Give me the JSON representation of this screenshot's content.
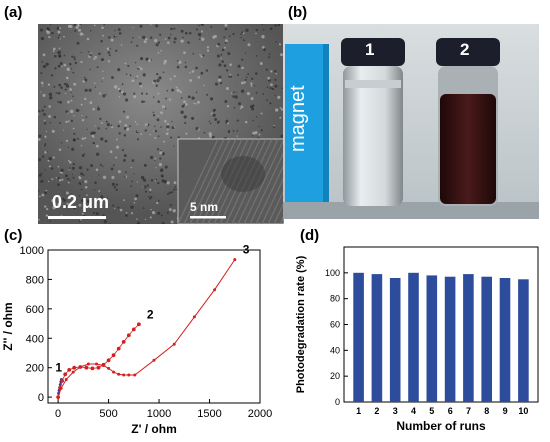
{
  "panels": {
    "a": {
      "letter": "(a)",
      "scale_bar": "0.2 μm",
      "inset_scale_bar": "5 nm"
    },
    "b": {
      "letter": "(b)",
      "magnet_text": "magnet",
      "vial_labels": [
        "1",
        "2"
      ]
    },
    "c": {
      "letter": "(c)"
    },
    "d": {
      "letter": "(d)"
    }
  },
  "colors": {
    "bar_fill": "#2e4c9c",
    "curve_red": "#d32020",
    "curve_blue": "#2a3fa8",
    "magnet_blue": "#1ea0e0",
    "vial2_liquid": "#3a1414"
  },
  "chart_data": [
    {
      "type": "line",
      "title": "",
      "xlabel": "Z' / ohm",
      "ylabel": "Z'' / ohm",
      "xlim": [
        -100,
        2000
      ],
      "ylim": [
        -40,
        1000
      ],
      "xticks": [
        0,
        500,
        1000,
        1500,
        2000
      ],
      "yticks": [
        0,
        200,
        400,
        600,
        800,
        1000
      ],
      "grid": false,
      "series": [
        {
          "label": "1",
          "x": [
            0,
            5,
            10,
            16,
            22,
            28,
            33
          ],
          "y": [
            0,
            25,
            45,
            65,
            85,
            105,
            120
          ]
        },
        {
          "label": "2",
          "x": [
            0,
            20,
            40,
            70,
            110,
            160,
            220,
            280,
            340,
            400,
            450,
            500,
            550,
            600,
            650,
            700,
            750,
            800
          ],
          "y": [
            0,
            60,
            110,
            155,
            185,
            200,
            205,
            200,
            195,
            200,
            220,
            250,
            285,
            330,
            375,
            420,
            460,
            495
          ]
        },
        {
          "label": "3",
          "x": [
            0,
            30,
            80,
            150,
            220,
            300,
            380,
            450,
            500,
            550,
            600,
            650,
            700,
            760,
            950,
            1150,
            1350,
            1550,
            1750
          ],
          "y": [
            0,
            60,
            120,
            170,
            205,
            225,
            225,
            215,
            195,
            170,
            155,
            150,
            150,
            150,
            250,
            360,
            545,
            730,
            935
          ]
        }
      ]
    },
    {
      "type": "bar",
      "title": "",
      "xlabel": "Number of runs",
      "ylabel": "Photodegradation rate (%)",
      "categories": [
        "1",
        "2",
        "3",
        "4",
        "5",
        "6",
        "7",
        "8",
        "9",
        "10"
      ],
      "values": [
        100,
        99,
        96,
        100,
        98,
        97,
        99,
        97,
        96,
        95
      ],
      "ylim": [
        0,
        120
      ],
      "yticks": [
        0,
        20,
        40,
        60,
        80,
        100
      ],
      "grid": false
    }
  ]
}
